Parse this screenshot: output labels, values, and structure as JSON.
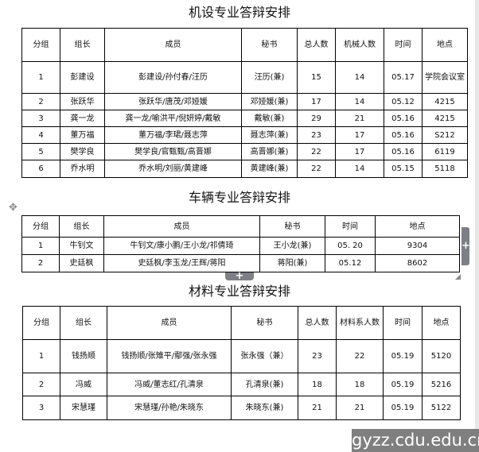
{
  "table1": {
    "title": "机设专业答辩安排",
    "headers": [
      "分组",
      "组长",
      "成员",
      "秘书",
      "总人数",
      "机械人数",
      "时间",
      "地点"
    ],
    "rows": [
      [
        "1",
        "彭建设",
        "彭建设/孙付春/汪历",
        "汪历(兼)",
        "15",
        "14",
        "05.17",
        "学院会议室"
      ],
      [
        "2",
        "张跃华",
        "张跃华/唐茂/邓娅媛",
        "邓娅媛(兼)",
        "17",
        "14",
        "05.12",
        "4215"
      ],
      [
        "3",
        "龚一龙",
        "龚一龙/喻洪平/倪妍婷/戴敏",
        "戴敏(兼)",
        "29",
        "21",
        "05.16",
        "4215"
      ],
      [
        "4",
        "董万福",
        "董万福/李珺/聂志萍",
        "聂志萍(兼)",
        "23",
        "17",
        "05.16",
        "S212"
      ],
      [
        "5",
        "樊学良",
        "樊学良/官甄甄/高晋娜",
        "高晋娜(兼)",
        "22",
        "17",
        "05.16",
        "6119"
      ],
      [
        "6",
        "乔水明",
        "乔水明/刘丽/黄建峰",
        "黄建峰(兼)",
        "22",
        "14",
        "05.15",
        "5118"
      ]
    ]
  },
  "table2": {
    "title": "车辆专业答辩安排",
    "headers": [
      "分组",
      "组长",
      "成员",
      "秘书",
      "时间",
      "地点"
    ],
    "rows": [
      [
        "1",
        "牛钊文",
        "牛钊文/康小鹏/王小龙/祁倩琦",
        "王小龙(兼)",
        "05. 20",
        "9304"
      ],
      [
        "2",
        "史廷枫",
        "史廷枫/李玉龙/王辉/蒋阳",
        "蒋阳(兼)",
        "05.12",
        "8602"
      ]
    ]
  },
  "table3": {
    "title": "材料专业答辩安排",
    "headers": [
      "分组",
      "组长",
      "成员",
      "秘书",
      "总人数",
      "材料系人数",
      "时间",
      "地点"
    ],
    "rows": [
      [
        "1",
        "钱扬顺",
        "钱扬顺/张雉平/鄢强/张永强",
        "张永强（兼）",
        "23",
        "22",
        "05.19",
        "5120"
      ],
      [
        "2",
        "冯威",
        "冯威/董志红/孔清泉",
        "孔清泉(兼)",
        "18",
        "18",
        "05.19",
        "5216"
      ],
      [
        "3",
        "宋慧瑾",
        "宋慧瑾/孙艳/朱晓东",
        "朱晓东(兼)",
        "21",
        "21",
        "05.19",
        "5122"
      ]
    ]
  },
  "editor": {
    "add_icon": "+",
    "move_icon": "move-icon"
  },
  "watermark": "gyzz.cdu.edu.cn"
}
